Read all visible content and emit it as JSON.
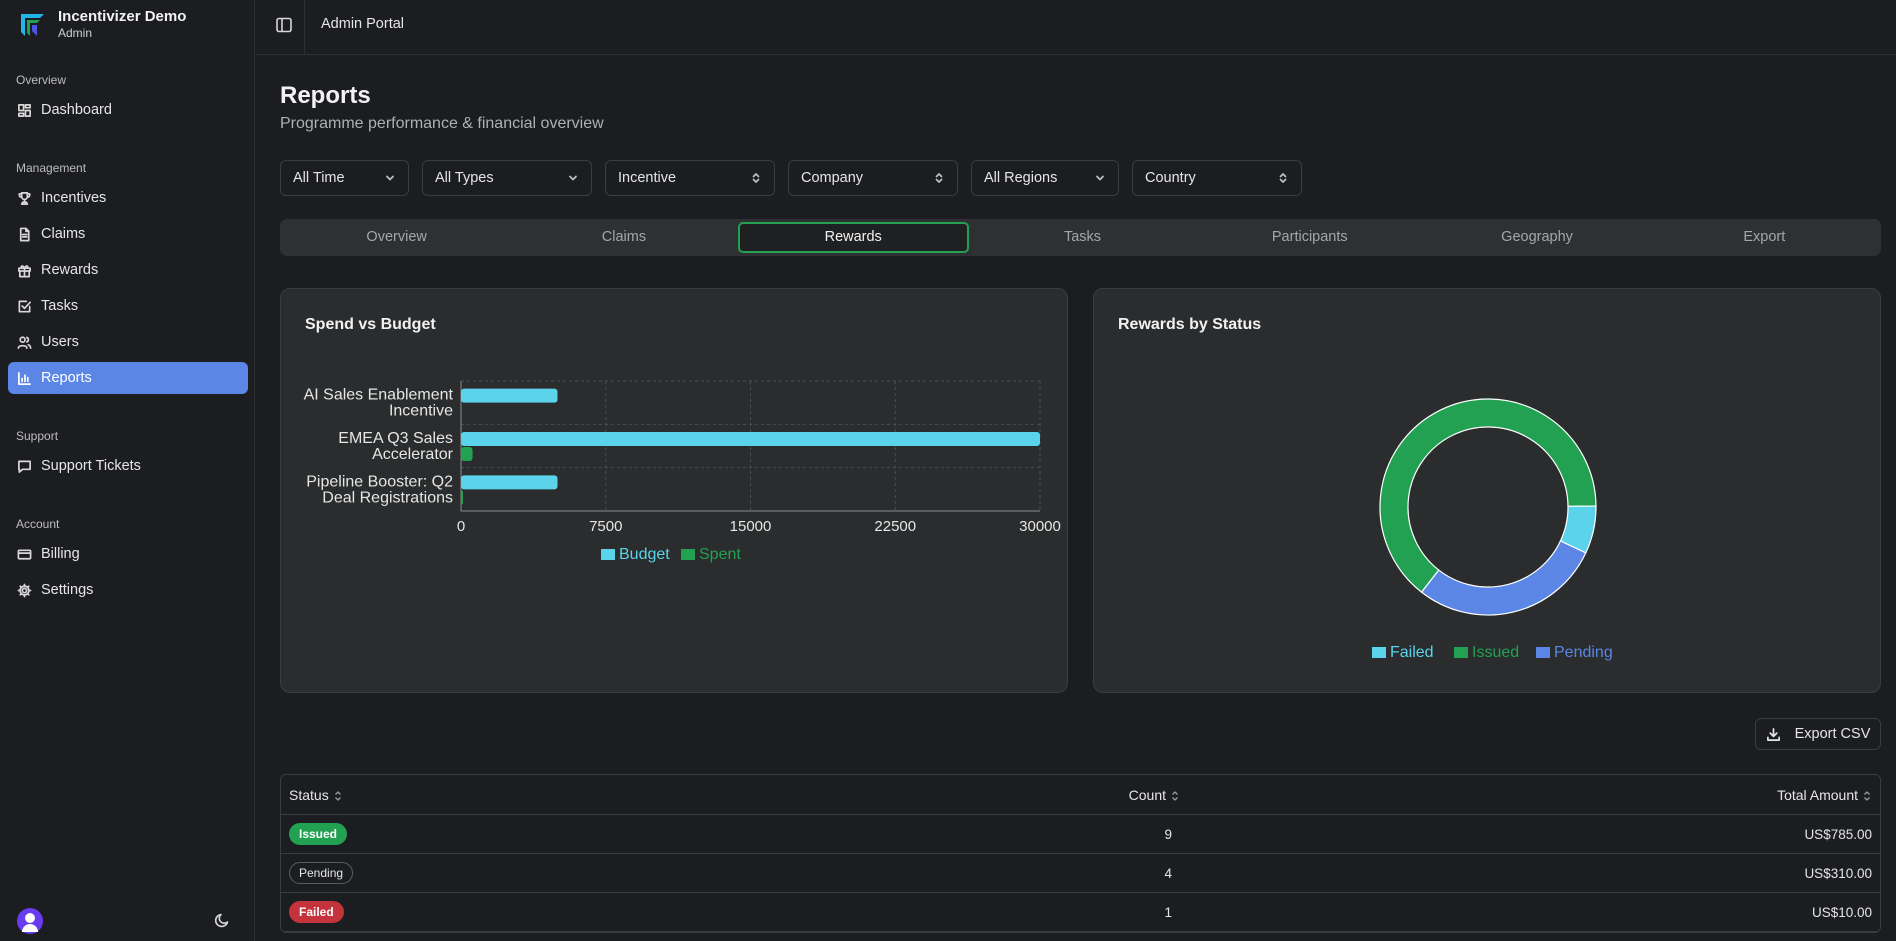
{
  "brand": {
    "name": "Incentivizer Demo",
    "role": "Admin"
  },
  "sidebar": {
    "sections": [
      {
        "label": "Overview",
        "items": [
          {
            "label": "Dashboard",
            "icon": "dashboard-icon"
          }
        ]
      },
      {
        "label": "Management",
        "items": [
          {
            "label": "Incentives",
            "icon": "trophy-icon"
          },
          {
            "label": "Claims",
            "icon": "file-icon"
          },
          {
            "label": "Rewards",
            "icon": "gift-icon"
          },
          {
            "label": "Tasks",
            "icon": "checkbox-icon"
          },
          {
            "label": "Users",
            "icon": "users-icon"
          },
          {
            "label": "Reports",
            "icon": "bar-chart-icon",
            "active": true
          }
        ]
      },
      {
        "label": "Support",
        "items": [
          {
            "label": "Support Tickets",
            "icon": "message-icon"
          }
        ]
      },
      {
        "label": "Account",
        "items": [
          {
            "label": "Billing",
            "icon": "credit-card-icon"
          },
          {
            "label": "Settings",
            "icon": "gear-icon"
          }
        ]
      }
    ]
  },
  "header": {
    "title": "Admin Portal"
  },
  "page": {
    "title": "Reports",
    "subtitle": "Programme performance & financial overview"
  },
  "filters": [
    "All Time",
    "All Types",
    "Incentive",
    "Company",
    "All Regions",
    "Country"
  ],
  "tabs": [
    "Overview",
    "Claims",
    "Rewards",
    "Tasks",
    "Participants",
    "Geography",
    "Export"
  ],
  "active_tab": "Rewards",
  "charts": {
    "spend_title": "Spend vs Budget",
    "status_title": "Rewards by Status"
  },
  "chart_data": [
    {
      "type": "bar",
      "orientation": "horizontal",
      "title": "Spend vs Budget",
      "categories": [
        "AI Sales Enablement Incentive",
        "EMEA Q3 Sales Accelerator",
        "Pipeline Booster: Q2 Deal Registrations"
      ],
      "series": [
        {
          "name": "Budget",
          "values": [
            5000,
            30000,
            5000
          ],
          "color": "#5bd3ea"
        },
        {
          "name": "Spent",
          "values": [
            0,
            600,
            80
          ],
          "color": "#22a152"
        }
      ],
      "xlim": [
        0,
        30000
      ],
      "xticks": [
        0,
        7500,
        15000,
        22500,
        30000
      ],
      "grid": true,
      "legend": "bottom"
    },
    {
      "type": "pie",
      "variant": "donut",
      "title": "Rewards by Status",
      "categories": [
        "Failed",
        "Issued",
        "Pending"
      ],
      "values": [
        1,
        9,
        4
      ],
      "colors": [
        "#5bd3ea",
        "#22a152",
        "#5b86e5"
      ],
      "legend": "bottom"
    }
  ],
  "export": {
    "label": "Export CSV"
  },
  "table": {
    "headers": [
      "Status",
      "Count",
      "Total Amount"
    ],
    "rows": [
      {
        "status": "Issued",
        "count": "9",
        "amount": "US$785.00"
      },
      {
        "status": "Pending",
        "count": "4",
        "amount": "US$310.00"
      },
      {
        "status": "Failed",
        "count": "1",
        "amount": "US$10.00"
      }
    ]
  }
}
